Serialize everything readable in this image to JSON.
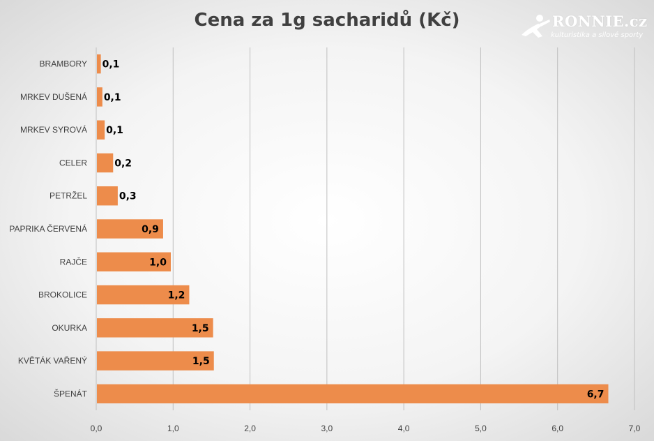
{
  "header": {
    "logo_word": "RONNIE.cz",
    "logo_tagline": "kulturistika a silové sporty"
  },
  "chart_data": {
    "type": "bar",
    "orientation": "horizontal",
    "title": "Cena za 1g sacharidů (Kč)",
    "categories": [
      "BRAMBORY",
      "MRKEV DUŠENÁ",
      "MRKEV SYROVÁ",
      "CELER",
      "PETRŽEL",
      "PAPRIKA ČERVENÁ",
      "RAJČE",
      "BROKOLICE",
      "OKURKA",
      "KVĚTÁK VAŘENÝ",
      "ŠPENÁT"
    ],
    "values": [
      0.06,
      0.08,
      0.11,
      0.22,
      0.28,
      0.87,
      0.97,
      1.21,
      1.52,
      1.53,
      6.66
    ],
    "data_labels": [
      "0,1",
      "0,1",
      "0,1",
      "0,2",
      "0,3",
      "0,9",
      "1,0",
      "1,2",
      "1,5",
      "1,5",
      "6,7"
    ],
    "x_ticks": [
      "0,0",
      "1,0",
      "2,0",
      "3,0",
      "4,0",
      "5,0",
      "6,0",
      "7,0"
    ],
    "xlim": [
      0,
      7
    ],
    "bar_color": "#ED8C4B",
    "grid": true,
    "legend": "none"
  }
}
